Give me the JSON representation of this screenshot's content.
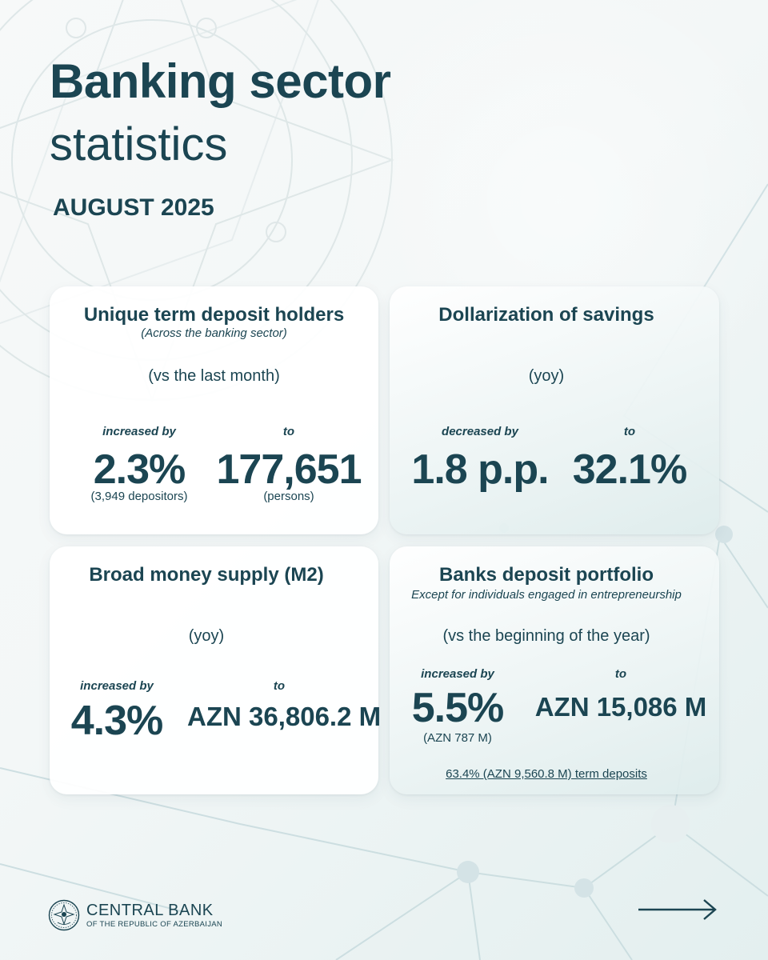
{
  "title_line1": "Banking sector",
  "title_line2": "statistics",
  "date": "AUGUST 2025",
  "cards": [
    {
      "title": "Unique term deposit holders",
      "subtitle": "(Across the banking sector)",
      "period": "(vs the last month)",
      "left_label": "increased by",
      "left_value": "2.3%",
      "left_note": "(3,949 depositors)",
      "right_label": "to",
      "right_value": "177,651",
      "right_note": "(persons)"
    },
    {
      "title": "Dollarization of savings",
      "period": "(yoy)",
      "left_label": "decreased by",
      "left_value": "1.8 p.p.",
      "right_label": "to",
      "right_value": "32.1%"
    },
    {
      "title": "Broad money supply (M2)",
      "period": "(yoy)",
      "left_label": "increased by",
      "left_value": "4.3%",
      "right_label": "to",
      "right_value": "AZN 36,806.2 M"
    },
    {
      "title": "Banks deposit portfolio",
      "subtitle": "Except for individuals engaged in entrepreneurship",
      "period": "(vs the beginning of the year)",
      "left_label": "increased by",
      "left_value": "5.5%",
      "left_note": "(AZN 787 M)",
      "right_label": "to",
      "right_value": "AZN 15,086 M",
      "footer": "63.4% (AZN 9,560.8 M) term deposits"
    }
  ],
  "footer": {
    "bank_name": "CENTRAL BANK",
    "bank_subtitle": "OF THE REPUBLIC OF AZERBAIJAN"
  },
  "icons": {
    "logo": "central-bank-emblem-icon",
    "next": "arrow-right-icon"
  },
  "colors": {
    "primary": "#1b4552",
    "accent": "#8fb8bf"
  }
}
